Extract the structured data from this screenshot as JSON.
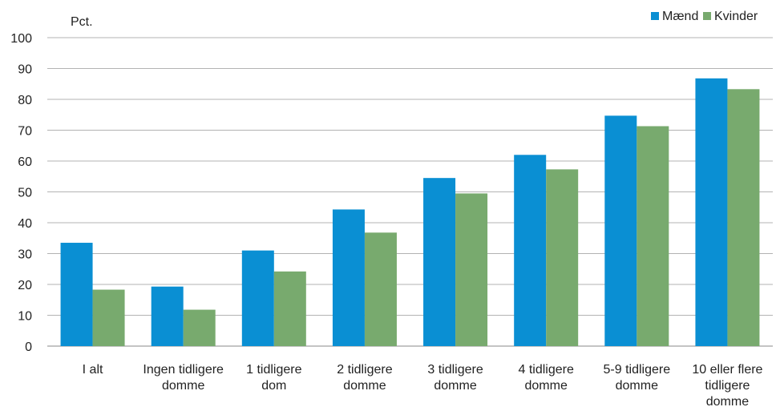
{
  "chart_data": {
    "type": "bar",
    "ylabel": "Pct.",
    "ylim": [
      0,
      100
    ],
    "yticks": [
      0,
      10,
      20,
      30,
      40,
      50,
      60,
      70,
      80,
      90,
      100
    ],
    "grid": true,
    "legend_position": "top-right",
    "categories": [
      [
        "I alt"
      ],
      [
        "Ingen tidligere",
        "domme"
      ],
      [
        "1 tidligere",
        "dom"
      ],
      [
        "2 tidligere",
        "domme"
      ],
      [
        "3 tidligere",
        "domme"
      ],
      [
        "4 tidligere",
        "domme"
      ],
      [
        "5-9 tidligere",
        "domme"
      ],
      [
        "10 eller flere",
        "tidligere",
        "domme"
      ]
    ],
    "series": [
      {
        "name": "Mænd",
        "color": "#0a8fd3",
        "values": [
          33.5,
          19.3,
          31.0,
          44.3,
          54.5,
          62.0,
          74.7,
          86.8
        ]
      },
      {
        "name": "Kvinder",
        "color": "#78aa6e",
        "values": [
          18.3,
          11.8,
          24.2,
          36.8,
          49.5,
          57.3,
          71.3,
          83.3
        ]
      }
    ]
  }
}
